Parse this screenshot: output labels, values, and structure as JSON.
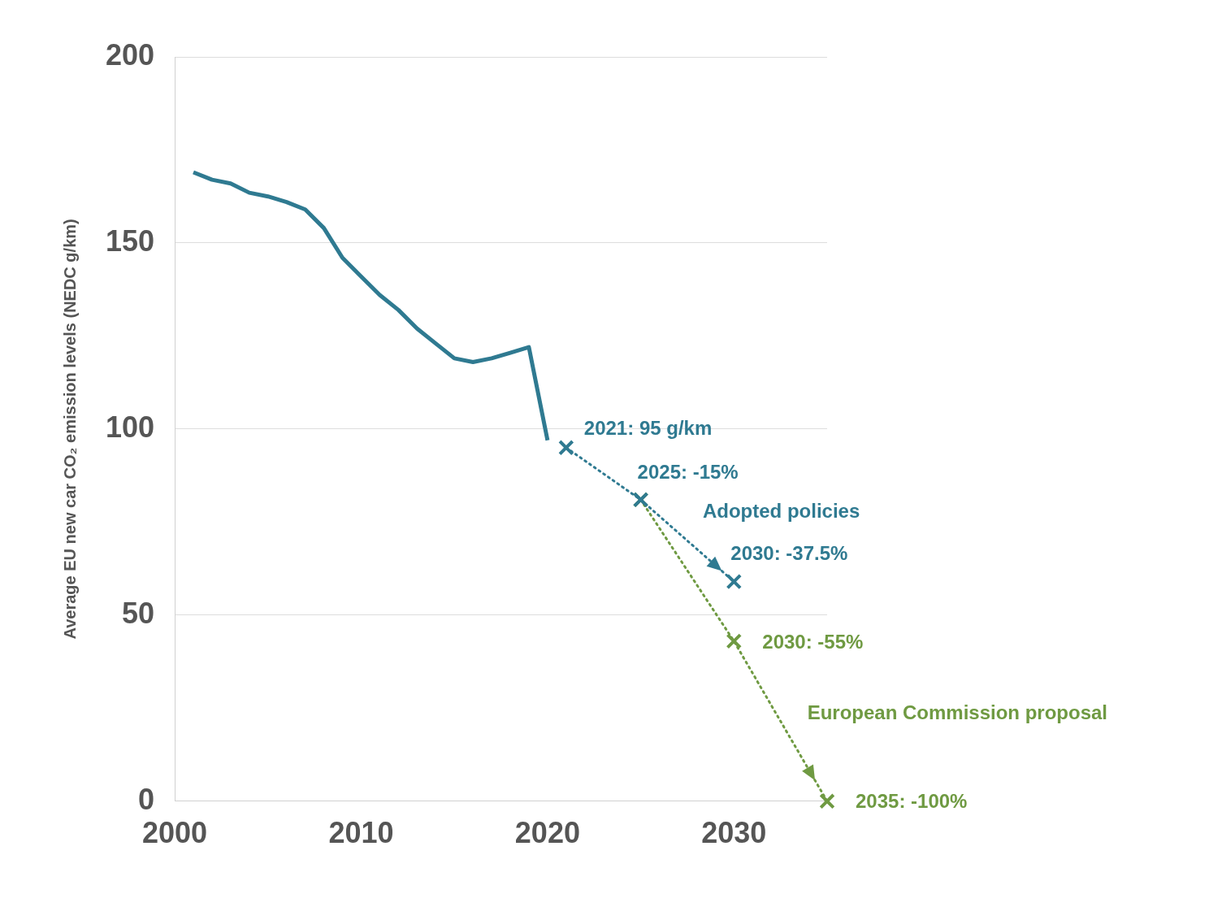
{
  "chart_data": {
    "type": "line",
    "y_label": "Average EU new car CO₂ emission levels (NEDC g/km)",
    "xlim": [
      2000,
      2035
    ],
    "xticks": [
      2000,
      2010,
      2020,
      2030
    ],
    "ylim": [
      0,
      200
    ],
    "yticks": [
      0,
      50,
      100,
      150,
      200
    ],
    "grid": true,
    "series": [
      {
        "color": "#2f7a91",
        "line_style": "solid",
        "marker": "none",
        "x": [
          2001,
          2002,
          2003,
          2004,
          2005,
          2006,
          2007,
          2008,
          2009,
          2010,
          2011,
          2012,
          2013,
          2014,
          2015,
          2016,
          2017,
          2018,
          2019,
          2020
        ],
        "values": [
          169,
          167,
          166,
          163.5,
          162.5,
          161,
          159,
          154,
          146,
          141,
          136,
          132,
          127,
          123,
          119,
          118,
          119,
          120.5,
          122,
          97
        ]
      },
      {
        "name": "Adopted policies",
        "color": "#2f7a91",
        "line_style": "dotted",
        "marker": "x",
        "x": [
          2021,
          2025,
          2030
        ],
        "values": [
          95,
          81,
          59
        ],
        "annotations": [
          "2021: 95 g/km",
          "2025: -15%",
          "2030: -37.5%"
        ]
      },
      {
        "name": "European Commission proposal",
        "color": "#6f9a42",
        "line_style": "dotted",
        "marker": "x",
        "x": [
          2025,
          2030,
          2035
        ],
        "values": [
          81,
          43,
          0
        ],
        "annotations": [
          null,
          "2030: -55%",
          "2035: -100%"
        ]
      }
    ]
  }
}
